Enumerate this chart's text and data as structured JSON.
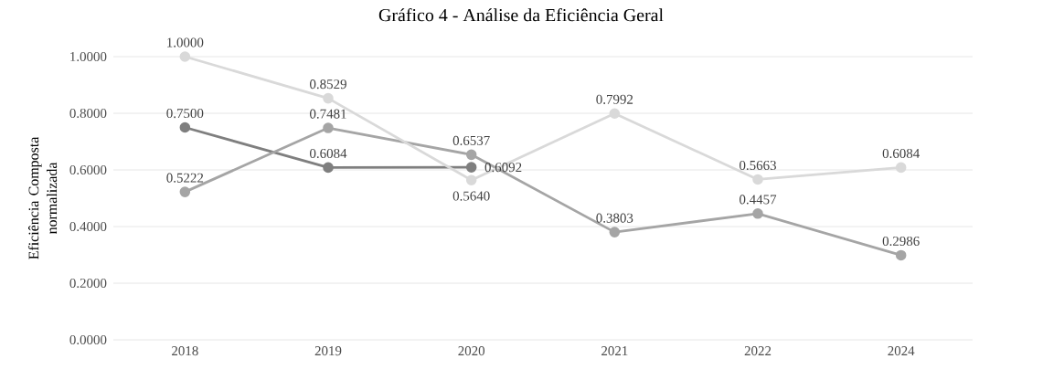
{
  "chart_data": {
    "type": "line",
    "title": "Gráfico 4 - Análise da Eficiência Geral",
    "ylabel": "Eficiência Composta normalizada",
    "categories": [
      "2018",
      "2019",
      "2020",
      "2021",
      "2022",
      "2024"
    ],
    "series": [
      {
        "color": "#7f7f7f",
        "values": [
          0.75,
          0.6084,
          0.6092,
          null,
          null,
          null
        ],
        "value_labels": [
          "0.7500",
          "0.6084",
          "0.6092",
          null,
          null,
          null
        ]
      },
      {
        "color": "#a5a5a5",
        "values": [
          0.5222,
          0.7481,
          0.6537,
          0.3803,
          0.4457,
          0.2986
        ],
        "value_labels": [
          "0.5222",
          "0.7481",
          "0.6537",
          "0.3803",
          "0.4457",
          "0.2986"
        ]
      },
      {
        "color": "#d9d9d9",
        "values": [
          1.0,
          0.8529,
          0.564,
          0.7992,
          0.5663,
          0.6084
        ],
        "value_labels": [
          "1.0000",
          "0.8529",
          "0.5640",
          "0.7992",
          "0.5663",
          "0.6084"
        ]
      }
    ],
    "ylim": [
      0,
      1
    ],
    "yticks": [
      {
        "value": 0,
        "label": "0.0000"
      },
      {
        "value": 0.2,
        "label": "0.2000"
      },
      {
        "value": 0.4,
        "label": "0.4000"
      },
      {
        "value": 0.6,
        "label": "0.6000"
      },
      {
        "value": 0.8,
        "label": "0.8000"
      },
      {
        "value": 1.0,
        "label": "1.0000"
      }
    ],
    "grid": "y",
    "marker": "circle",
    "line_style": "solid"
  }
}
